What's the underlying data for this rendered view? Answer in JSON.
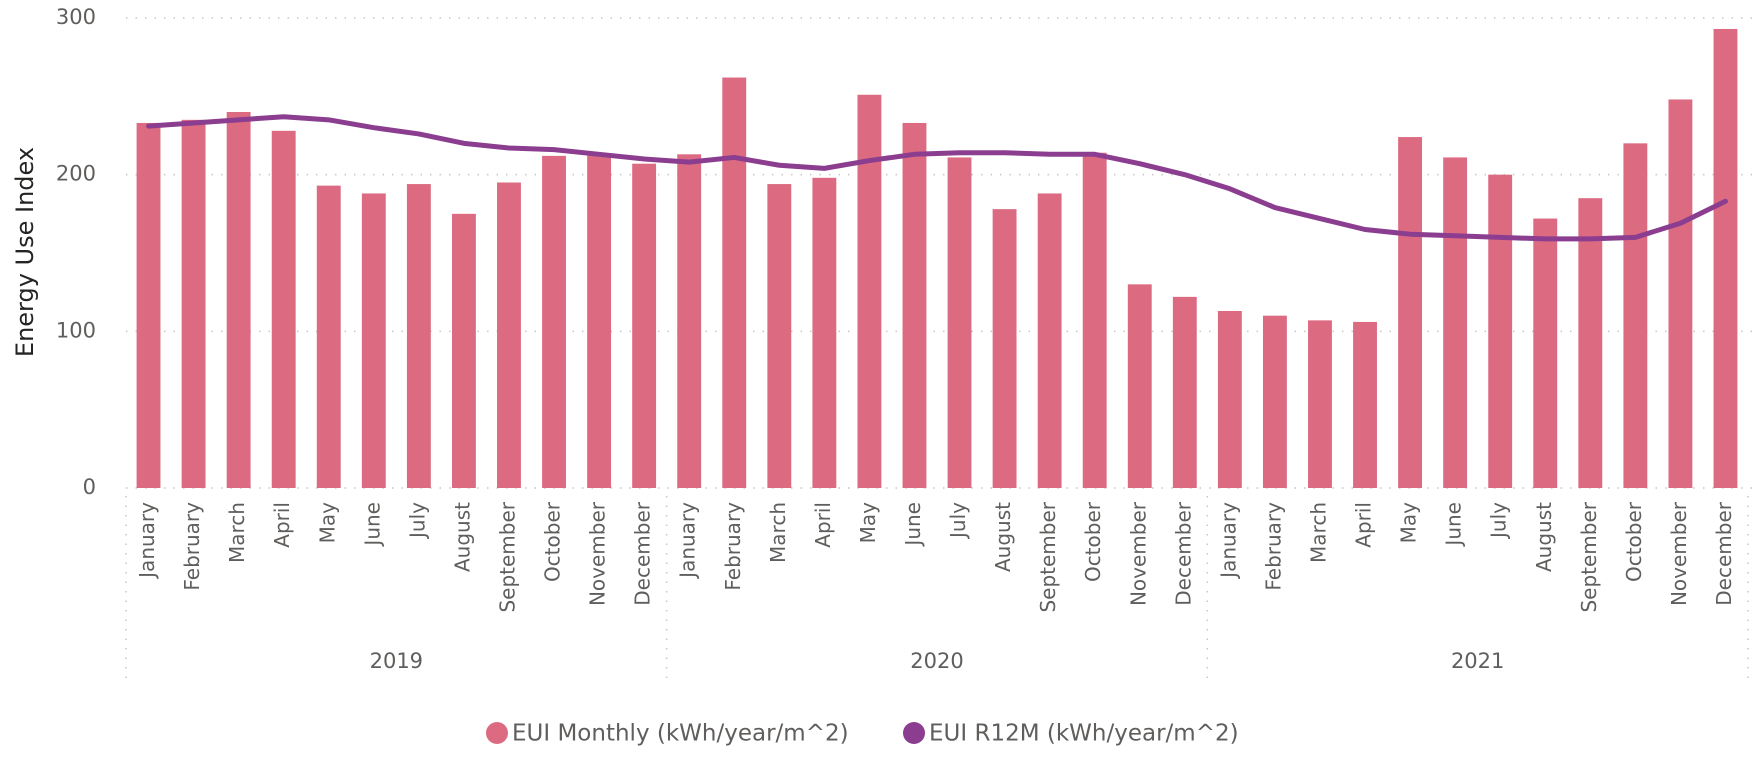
{
  "chart_data": {
    "type": "bar_line",
    "y_axis_label": "Energy Use Index",
    "categories": [
      "January",
      "February",
      "March",
      "April",
      "May",
      "June",
      "July",
      "August",
      "September",
      "October",
      "November",
      "December",
      "January",
      "February",
      "March",
      "April",
      "May",
      "June",
      "July",
      "August",
      "September",
      "October",
      "November",
      "December",
      "January",
      "February",
      "March",
      "April",
      "May",
      "June",
      "July",
      "August",
      "September",
      "October",
      "November",
      "December"
    ],
    "category_groups": [
      "2019",
      "2020",
      "2021"
    ],
    "series": [
      {
        "name": "EUI Monthly (kWh/year/m^2)",
        "type": "bar",
        "color": "#dc6b82",
        "values": [
          233,
          235,
          240,
          228,
          193,
          188,
          194,
          175,
          195,
          212,
          213,
          207,
          213,
          262,
          194,
          198,
          251,
          233,
          211,
          178,
          188,
          214,
          130,
          122,
          113,
          110,
          107,
          106,
          224,
          211,
          200,
          172,
          185,
          220,
          248,
          293
        ]
      },
      {
        "name": "EUI R12M (kWh/year/m^2)",
        "type": "line",
        "color": "#8b3d8f",
        "values": [
          231,
          233,
          235,
          237,
          235,
          230,
          226,
          220,
          217,
          216,
          213,
          210,
          208,
          211,
          206,
          204,
          209,
          213,
          214,
          214,
          213,
          213,
          207,
          200,
          191,
          179,
          172,
          165,
          162,
          161,
          160,
          159,
          159,
          160,
          169,
          183
        ]
      }
    ],
    "ylim": [
      0,
      300
    ],
    "yticks": [
      0,
      100,
      200,
      300
    ],
    "grid": true
  }
}
